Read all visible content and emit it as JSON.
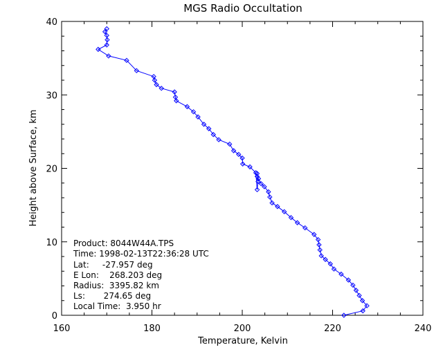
{
  "chart_data": {
    "type": "line",
    "title": "MGS Radio Occultation",
    "xlabel": "Temperature, Kelvin",
    "ylabel": "Height above Surface, km",
    "xlim": [
      160,
      240
    ],
    "ylim": [
      0,
      40
    ],
    "xticks": [
      160,
      180,
      200,
      220,
      240
    ],
    "yticks": [
      0,
      10,
      20,
      30,
      40
    ],
    "grid": false,
    "colors": {
      "series": "#0000ff",
      "axes": "#000000",
      "background": "#ffffff"
    },
    "marker": "diamond",
    "series": [
      {
        "x": [
          222.5,
          226.7,
          227.6,
          226.6,
          225.9,
          225.2,
          224.5,
          223.5,
          221.9,
          220.3,
          219.5,
          218.4,
          217.5,
          217.2,
          217.0,
          216.8,
          215.9,
          213.9,
          212.2,
          210.8,
          209.3,
          207.8,
          206.6,
          206.1,
          205.8,
          204.9,
          204.2,
          203.6,
          203.3,
          203.3,
          203.5,
          203.3,
          203.0,
          201.7,
          200.1,
          200.0,
          199.2,
          198.1,
          197.2,
          194.8,
          193.6,
          192.6,
          191.5,
          190.2,
          189.2,
          187.8,
          185.4,
          185.2,
          185.0,
          182.1,
          181.0,
          180.6,
          180.4,
          176.6,
          174.4,
          170.4,
          168.1,
          170.0,
          170.1,
          170.0,
          169.6,
          170.0
        ],
        "y": [
          0.0,
          0.6,
          1.3,
          2.0,
          2.7,
          3.4,
          4.1,
          4.8,
          5.6,
          6.3,
          7.0,
          7.6,
          8.1,
          8.9,
          9.6,
          10.3,
          11.0,
          11.9,
          12.6,
          13.3,
          14.1,
          14.8,
          15.3,
          16.1,
          16.8,
          17.5,
          17.9,
          18.6,
          18.9,
          19.3,
          18.2,
          17.1,
          19.4,
          20.2,
          20.6,
          21.4,
          21.9,
          22.4,
          23.3,
          23.9,
          24.6,
          25.4,
          26.0,
          27.0,
          27.7,
          28.4,
          29.2,
          29.7,
          30.4,
          30.9,
          31.4,
          32.0,
          32.5,
          33.3,
          34.7,
          35.3,
          36.2,
          36.8,
          37.5,
          38.1,
          38.6,
          39.0
        ]
      }
    ],
    "annotations": [
      "Product: 8044W44A.TPS",
      "Time: 1998-02-13T22:36:28 UTC",
      "Lat:     -27.957 deg",
      "E Lon:    268.203 deg",
      "Radius:  3395.82 km",
      "Ls:       274.65 deg",
      "Local Time:  3.950 hr"
    ]
  }
}
